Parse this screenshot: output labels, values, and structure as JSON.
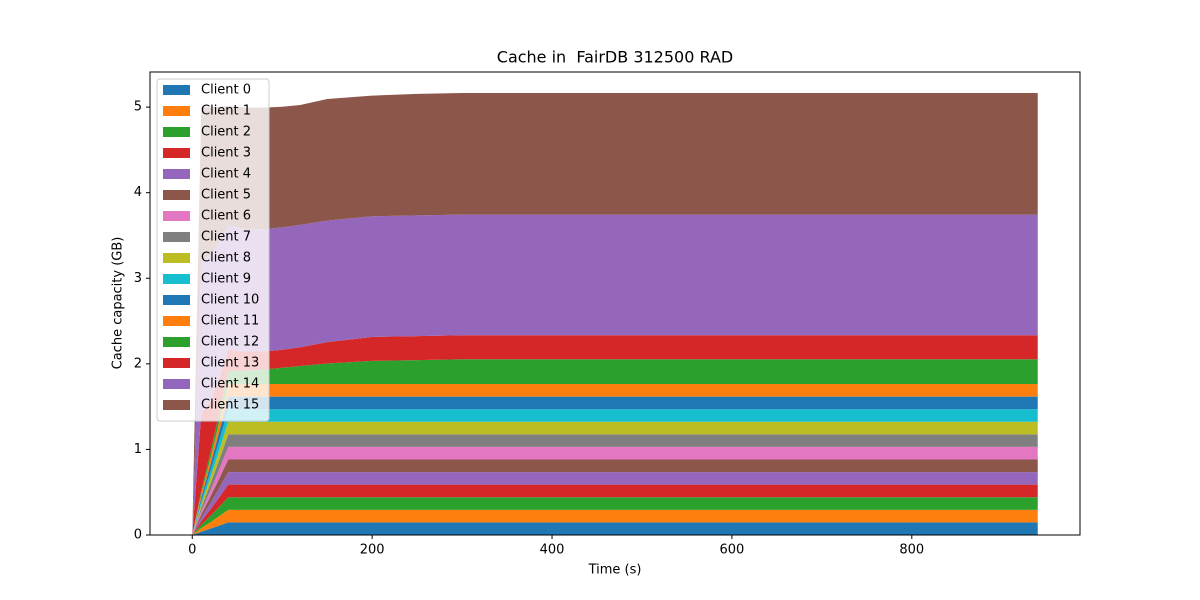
{
  "chart_data": {
    "type": "area",
    "stacked": true,
    "title": "Cache in  FairDB 312500 RAD",
    "xlabel": "Time (s)",
    "ylabel": "Cache capacity (GB)",
    "x": [
      0,
      10,
      20,
      30,
      40,
      60,
      80,
      100,
      120,
      150,
      200,
      250,
      300,
      400,
      500,
      600,
      700,
      800,
      900,
      940
    ],
    "xlim": [
      -47,
      987
    ],
    "xticks": [
      0,
      200,
      400,
      600,
      800
    ],
    "ylim": [
      0,
      5.41
    ],
    "yticks": [
      0,
      1,
      2,
      3,
      4,
      5
    ],
    "grid": false,
    "legend": "upper left",
    "series": [
      {
        "name": "Client 0",
        "color": "#1f77b4",
        "values": [
          0,
          0.04,
          0.074,
          0.11,
          0.147,
          0.147,
          0.147,
          0.147,
          0.147,
          0.147,
          0.147,
          0.147,
          0.147,
          0.147,
          0.147,
          0.147,
          0.147,
          0.147,
          0.147,
          0.147
        ]
      },
      {
        "name": "Client 1",
        "color": "#ff7f0e",
        "values": [
          0,
          0.04,
          0.074,
          0.11,
          0.147,
          0.147,
          0.147,
          0.147,
          0.147,
          0.147,
          0.147,
          0.147,
          0.147,
          0.147,
          0.147,
          0.147,
          0.147,
          0.147,
          0.147,
          0.147
        ]
      },
      {
        "name": "Client 2",
        "color": "#2ca02c",
        "values": [
          0,
          0.04,
          0.074,
          0.11,
          0.147,
          0.147,
          0.147,
          0.147,
          0.147,
          0.147,
          0.147,
          0.147,
          0.147,
          0.147,
          0.147,
          0.147,
          0.147,
          0.147,
          0.147,
          0.147
        ]
      },
      {
        "name": "Client 3",
        "color": "#d62728",
        "values": [
          0,
          0.04,
          0.074,
          0.11,
          0.147,
          0.147,
          0.147,
          0.147,
          0.147,
          0.147,
          0.147,
          0.147,
          0.147,
          0.147,
          0.147,
          0.147,
          0.147,
          0.147,
          0.147,
          0.147
        ]
      },
      {
        "name": "Client 4",
        "color": "#9467bd",
        "values": [
          0,
          0.04,
          0.074,
          0.11,
          0.147,
          0.147,
          0.147,
          0.147,
          0.147,
          0.147,
          0.147,
          0.147,
          0.147,
          0.147,
          0.147,
          0.147,
          0.147,
          0.147,
          0.147,
          0.147
        ]
      },
      {
        "name": "Client 5",
        "color": "#8c564b",
        "values": [
          0,
          0.04,
          0.074,
          0.11,
          0.147,
          0.147,
          0.147,
          0.147,
          0.147,
          0.147,
          0.147,
          0.147,
          0.147,
          0.147,
          0.147,
          0.147,
          0.147,
          0.147,
          0.147,
          0.147
        ]
      },
      {
        "name": "Client 6",
        "color": "#e377c2",
        "values": [
          0,
          0.04,
          0.074,
          0.11,
          0.147,
          0.147,
          0.147,
          0.147,
          0.147,
          0.147,
          0.147,
          0.147,
          0.147,
          0.147,
          0.147,
          0.147,
          0.147,
          0.147,
          0.147,
          0.147
        ]
      },
      {
        "name": "Client 7",
        "color": "#7f7f7f",
        "values": [
          0,
          0.04,
          0.074,
          0.11,
          0.147,
          0.147,
          0.147,
          0.147,
          0.147,
          0.147,
          0.147,
          0.147,
          0.147,
          0.147,
          0.147,
          0.147,
          0.147,
          0.147,
          0.147,
          0.147
        ]
      },
      {
        "name": "Client 8",
        "color": "#bcbd22",
        "values": [
          0,
          0.04,
          0.074,
          0.11,
          0.147,
          0.147,
          0.147,
          0.147,
          0.147,
          0.147,
          0.147,
          0.147,
          0.147,
          0.147,
          0.147,
          0.147,
          0.147,
          0.147,
          0.147,
          0.147
        ]
      },
      {
        "name": "Client 9",
        "color": "#17becf",
        "values": [
          0,
          0.04,
          0.074,
          0.11,
          0.147,
          0.147,
          0.147,
          0.147,
          0.147,
          0.147,
          0.147,
          0.147,
          0.147,
          0.147,
          0.147,
          0.147,
          0.147,
          0.147,
          0.147,
          0.147
        ]
      },
      {
        "name": "Client 10",
        "color": "#1f77b4",
        "values": [
          0,
          0.04,
          0.074,
          0.11,
          0.147,
          0.147,
          0.147,
          0.147,
          0.147,
          0.147,
          0.147,
          0.147,
          0.147,
          0.147,
          0.147,
          0.147,
          0.147,
          0.147,
          0.147,
          0.147
        ]
      },
      {
        "name": "Client 11",
        "color": "#ff7f0e",
        "values": [
          0,
          0.04,
          0.074,
          0.11,
          0.147,
          0.147,
          0.147,
          0.147,
          0.147,
          0.147,
          0.147,
          0.147,
          0.147,
          0.147,
          0.147,
          0.147,
          0.147,
          0.147,
          0.147,
          0.147
        ]
      },
      {
        "name": "Client 12",
        "color": "#2ca02c",
        "values": [
          0,
          0.04,
          0.07,
          0.11,
          0.15,
          0.16,
          0.17,
          0.19,
          0.21,
          0.24,
          0.27,
          0.28,
          0.29,
          0.29,
          0.29,
          0.29,
          0.29,
          0.29,
          0.29,
          0.29
        ]
      },
      {
        "name": "Client 13",
        "color": "#d62728",
        "values": [
          0,
          0.9,
          0.6,
          0.4,
          0.25,
          0.22,
          0.21,
          0.21,
          0.22,
          0.25,
          0.28,
          0.28,
          0.28,
          0.28,
          0.28,
          0.28,
          0.28,
          0.28,
          0.28,
          0.28
        ]
      },
      {
        "name": "Client 14",
        "color": "#9467bd",
        "values": [
          0,
          1.8,
          1.7,
          1.6,
          1.45,
          1.43,
          1.43,
          1.43,
          1.43,
          1.42,
          1.41,
          1.41,
          1.41,
          1.41,
          1.41,
          1.41,
          1.41,
          1.41,
          1.41,
          1.41
        ]
      },
      {
        "name": "Client 15",
        "color": "#8c564b",
        "values": [
          0,
          1.78,
          1.74,
          1.57,
          1.4,
          1.42,
          1.42,
          1.41,
          1.4,
          1.42,
          1.41,
          1.42,
          1.42,
          1.42,
          1.42,
          1.42,
          1.42,
          1.42,
          1.42,
          1.42
        ]
      }
    ]
  }
}
